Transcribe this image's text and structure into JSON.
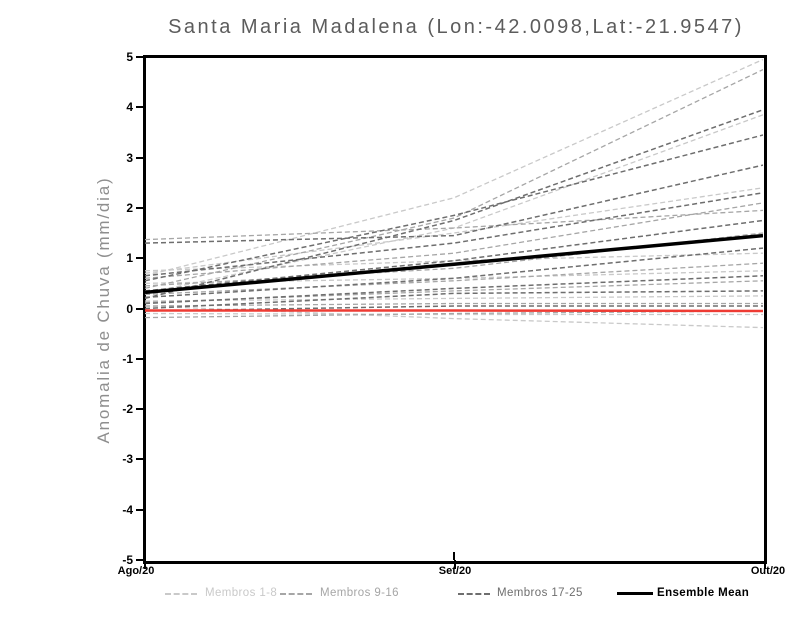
{
  "title": "Santa Maria Madalena (Lon:-42.0098,Lat:-21.9547)",
  "colors": {
    "frame": "#000000",
    "title_text": "#5c5c5c",
    "axis_title_text": "#8e8e8e",
    "members_1_8": "#c9c9c9",
    "members_9_16": "#a6a6a6",
    "members_17_25": "#6e6e6e",
    "ensemble_mean": "#000000",
    "zero_reference": "#ee3b33"
  },
  "chart_data": {
    "type": "line",
    "title": "Santa Maria Madalena (Lon:-42.0098,Lat:-21.9547)",
    "xlabel": "",
    "ylabel": "Anomalia de Chuva (mm/dia)",
    "x_categories": [
      "Ago/20",
      "Set/20",
      "Out/20"
    ],
    "ylim": [
      -5,
      5
    ],
    "yticks": [
      5,
      4,
      3,
      2,
      1,
      0,
      -1,
      -2,
      -3,
      -4,
      -5
    ],
    "grid": false,
    "legend_position": "bottom",
    "groups": [
      {
        "name": "Membros 1-8",
        "color": "#c9c9c9",
        "style": "dashed"
      },
      {
        "name": "Membros 9-16",
        "color": "#a6a6a6",
        "style": "dashed"
      },
      {
        "name": "Membros 17-25",
        "color": "#6e6e6e",
        "style": "dashed"
      },
      {
        "name": "Ensemble Mean",
        "color": "#000000",
        "style": "solid"
      }
    ],
    "series": [
      {
        "name": "member-1",
        "group": 0,
        "values": [
          0.65,
          2.2,
          4.95
        ]
      },
      {
        "name": "member-2",
        "group": 0,
        "values": [
          0.3,
          1.6,
          3.85
        ]
      },
      {
        "name": "member-3",
        "group": 0,
        "values": [
          0.7,
          1.5,
          2.4
        ]
      },
      {
        "name": "member-4",
        "group": 0,
        "values": [
          0.75,
          0.95,
          1.1
        ]
      },
      {
        "name": "member-5",
        "group": 0,
        "values": [
          0.5,
          0.6,
          0.75
        ]
      },
      {
        "name": "member-6",
        "group": 0,
        "values": [
          0.15,
          0.2,
          0.25
        ]
      },
      {
        "name": "member-7",
        "group": 0,
        "values": [
          -0.1,
          -0.12,
          -0.12
        ]
      },
      {
        "name": "member-8",
        "group": 0,
        "values": [
          0.05,
          -0.2,
          -0.38
        ]
      },
      {
        "name": "member-9",
        "group": 1,
        "values": [
          0.4,
          1.8,
          4.75
        ]
      },
      {
        "name": "member-10",
        "group": 1,
        "values": [
          1.37,
          1.6,
          1.95
        ]
      },
      {
        "name": "member-11",
        "group": 1,
        "values": [
          0.6,
          1.1,
          2.1
        ]
      },
      {
        "name": "member-12",
        "group": 1,
        "values": [
          0.45,
          0.8,
          1.5
        ]
      },
      {
        "name": "member-13",
        "group": 1,
        "values": [
          0.28,
          0.55,
          0.9
        ]
      },
      {
        "name": "member-14",
        "group": 1,
        "values": [
          0.12,
          0.35,
          0.55
        ]
      },
      {
        "name": "member-15",
        "group": 1,
        "values": [
          0.05,
          0.1,
          0.1
        ]
      },
      {
        "name": "member-16",
        "group": 1,
        "values": [
          -0.18,
          -0.1,
          -0.05
        ]
      },
      {
        "name": "member-17",
        "group": 2,
        "values": [
          0.2,
          1.75,
          3.95
        ]
      },
      {
        "name": "member-18",
        "group": 2,
        "values": [
          0.55,
          1.85,
          3.45
        ]
      },
      {
        "name": "member-19",
        "group": 2,
        "values": [
          1.3,
          1.45,
          2.85
        ]
      },
      {
        "name": "member-20",
        "group": 2,
        "values": [
          0.65,
          1.3,
          2.3
        ]
      },
      {
        "name": "member-21",
        "group": 2,
        "values": [
          0.35,
          0.95,
          1.75
        ]
      },
      {
        "name": "member-22",
        "group": 2,
        "values": [
          0.22,
          0.6,
          1.2
        ]
      },
      {
        "name": "member-23",
        "group": 2,
        "values": [
          0.1,
          0.4,
          0.65
        ]
      },
      {
        "name": "member-24",
        "group": 2,
        "values": [
          0.0,
          0.3,
          0.35
        ]
      },
      {
        "name": "member-25",
        "group": 2,
        "values": [
          -0.05,
          0.05,
          0.05
        ]
      },
      {
        "name": "Ensemble Mean",
        "group": 3,
        "values": [
          0.32,
          0.88,
          1.45
        ]
      }
    ],
    "zero_line": {
      "name": "zero-reference-line",
      "color": "#ee3b33",
      "values": [
        -0.04,
        -0.04,
        -0.05
      ]
    }
  }
}
